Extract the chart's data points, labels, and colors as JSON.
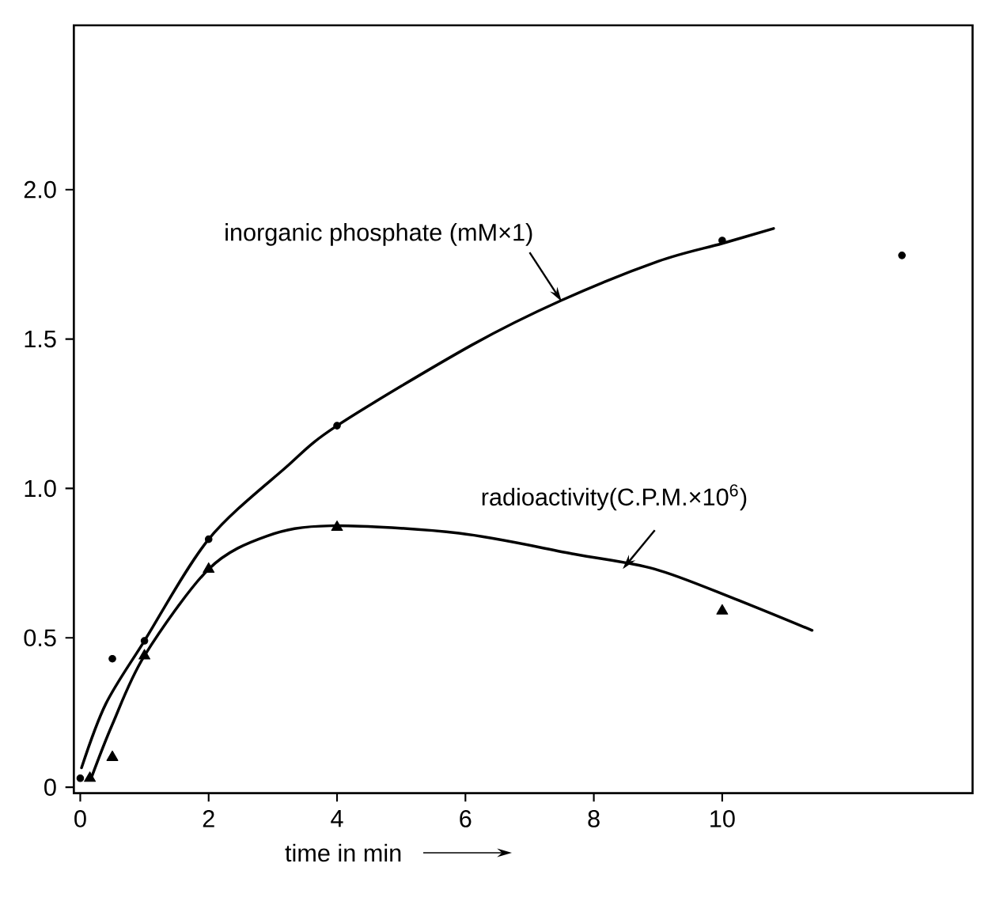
{
  "chart_data": {
    "type": "scatter",
    "xlabel": "time in min",
    "xlim": [
      -0.1,
      13.9
    ],
    "ylim": [
      -0.02,
      2.55
    ],
    "xticks": [
      0,
      2,
      4,
      6,
      8,
      10
    ],
    "yticks": [
      0,
      {
        "value": 0.5,
        "label": "0.5"
      },
      {
        "value": 1,
        "label": "1.0"
      },
      {
        "value": 1.5,
        "label": "1.5"
      },
      {
        "value": 2,
        "label": "2.0"
      }
    ],
    "series": [
      {
        "marker": "circle",
        "color": "#000000",
        "x": [
          0,
          0.5,
          1,
          2,
          4,
          10,
          12.8
        ],
        "values": [
          0.03,
          0.43,
          0.49,
          0.83,
          1.21,
          1.83,
          1.78
        ]
      },
      {
        "name": "inorganic phosphate (mM×1)",
        "type": "line",
        "marker": "none",
        "color": "#000000",
        "x": [
          0.02,
          0.4,
          1,
          2,
          3.2,
          4,
          6.1,
          7.5,
          9,
          10,
          10.8
        ],
        "values": [
          0.065,
          0.28,
          0.49,
          0.83,
          1.07,
          1.21,
          1.48,
          1.63,
          1.76,
          1.82,
          1.87
        ]
      },
      {
        "marker": "triangle",
        "color": "#000000",
        "x": [
          0.15,
          0.5,
          1,
          2,
          4,
          10
        ],
        "values": [
          0.03,
          0.1,
          0.44,
          0.73,
          0.87,
          0.59
        ]
      },
      {
        "name": "radioactivity(C.P.M.×10$^{6}$)",
        "type": "line",
        "marker": "none",
        "color": "#000000",
        "x": [
          0.17,
          0.5,
          1,
          2,
          2.9,
          3.9,
          5.9,
          7.7,
          8.95,
          10.2,
          11.4
        ],
        "values": [
          0.03,
          0.21,
          0.44,
          0.73,
          0.84,
          0.875,
          0.85,
          0.78,
          0.73,
          0.63,
          0.525
        ]
      }
    ]
  }
}
